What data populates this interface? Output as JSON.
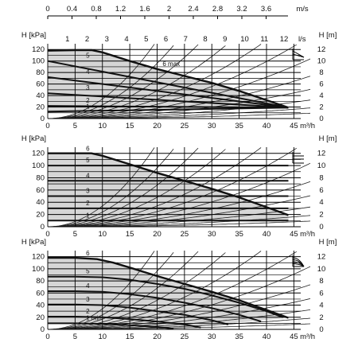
{
  "top_axis": {
    "unit": "m/s",
    "ticks": [
      "0",
      "0.4",
      "0.8",
      "1.2",
      "1.6",
      "2",
      "2.4",
      "2.8",
      "3.2",
      "3.6"
    ]
  },
  "secondary_axes": {
    "top_flow_unit": "l/s",
    "top_flow_ticks": [
      "1",
      "2",
      "3",
      "4",
      "5",
      "6",
      "7",
      "8",
      "9",
      "10",
      "11",
      "12"
    ],
    "right_unit": "H [m]",
    "right_ticks": [
      "0",
      "2",
      "4",
      "6",
      "8",
      "10",
      "12"
    ],
    "left_unit": "H [kPa]",
    "left_ticks": [
      "0",
      "20",
      "40",
      "60",
      "80",
      "100",
      "120"
    ],
    "bottom_unit": "m³/h",
    "bottom_ticks": [
      "0",
      "5",
      "10",
      "15",
      "20",
      "25",
      "30",
      "35",
      "40",
      "45"
    ]
  },
  "colors": {
    "shade": "#d6d6d6",
    "grid": "#000000",
    "curve": "#111111"
  },
  "chart_data": [
    {
      "type": "line",
      "mode_icon": "proportional-pressure-icon",
      "xlabel": "m³/h",
      "ylabel": "H [kPa]",
      "y2label": "H [m]",
      "xlim": [
        0,
        48
      ],
      "ylim": [
        0,
        130
      ],
      "series": [
        {
          "name": "1",
          "x": [
            0,
            44
          ],
          "y": [
            12,
            19
          ]
        },
        {
          "name": "2",
          "x": [
            0,
            44
          ],
          "y": [
            22,
            19
          ]
        },
        {
          "name": "3",
          "x": [
            0,
            44
          ],
          "y": [
            44,
            19
          ]
        },
        {
          "name": "4",
          "x": [
            0,
            44
          ],
          "y": [
            72,
            19
          ]
        },
        {
          "name": "5",
          "x": [
            0,
            44
          ],
          "y": [
            100,
            19
          ]
        },
        {
          "name": "6 max",
          "x": [
            0,
            5,
            8,
            10,
            15,
            20,
            25,
            30,
            35,
            40,
            44
          ],
          "y": [
            118,
            119,
            119,
            115,
            100,
            86,
            74,
            62,
            48,
            32,
            19
          ]
        }
      ]
    },
    {
      "type": "line",
      "mode_icon": "constant-pressure-icon",
      "xlabel": "m³/h",
      "ylabel": "H [kPa]",
      "y2label": "H [m]",
      "xlim": [
        0,
        48
      ],
      "ylim": [
        0,
        130
      ],
      "series": [
        {
          "name": "1",
          "x": [
            0,
            44
          ],
          "y": [
            10,
            10
          ]
        },
        {
          "name": "2",
          "x": [
            0,
            44
          ],
          "y": [
            30,
            30
          ]
        },
        {
          "name": "3",
          "x": [
            0,
            44
          ],
          "y": [
            50,
            50
          ]
        },
        {
          "name": "4",
          "x": [
            0,
            44
          ],
          "y": [
            75,
            75
          ]
        },
        {
          "name": "5",
          "x": [
            0,
            44
          ],
          "y": [
            100,
            100
          ]
        },
        {
          "name": "6",
          "x": [
            0,
            8,
            10,
            15,
            20,
            25,
            30,
            35,
            40,
            44
          ],
          "y": [
            120,
            120,
            116,
            102,
            88,
            75,
            62,
            48,
            32,
            19
          ]
        }
      ]
    },
    {
      "type": "line",
      "mode_icon": "constant-curve-icon",
      "xlabel": "m³/h",
      "ylabel": "H [kPa]",
      "y2label": "H [m]",
      "xlim": [
        0,
        48
      ],
      "ylim": [
        0,
        130
      ],
      "series": [
        {
          "name": "1 min",
          "x": [
            0,
            5,
            10,
            15,
            20,
            23
          ],
          "y": [
            10,
            10,
            9,
            7,
            4,
            1
          ]
        },
        {
          "name": "2",
          "x": [
            0,
            5,
            10,
            15,
            20,
            25,
            28
          ],
          "y": [
            21,
            21,
            20,
            17,
            13,
            8,
            3
          ]
        },
        {
          "name": "3",
          "x": [
            0,
            5,
            10,
            15,
            20,
            25,
            30,
            33
          ],
          "y": [
            41,
            41,
            40,
            36,
            30,
            24,
            15,
            8
          ]
        },
        {
          "name": "4",
          "x": [
            0,
            5,
            10,
            15,
            20,
            25,
            30,
            35,
            39
          ],
          "y": [
            63,
            63,
            62,
            58,
            52,
            44,
            35,
            24,
            13
          ]
        },
        {
          "name": "5",
          "x": [
            0,
            5,
            10,
            15,
            20,
            25,
            30,
            35,
            40,
            43
          ],
          "y": [
            87,
            87,
            86,
            82,
            75,
            67,
            56,
            44,
            30,
            20
          ]
        },
        {
          "name": "6",
          "x": [
            0,
            5,
            9,
            12,
            15,
            20,
            25,
            30,
            35,
            40,
            44
          ],
          "y": [
            118,
            118,
            116,
            110,
            102,
            88,
            75,
            62,
            48,
            32,
            19
          ]
        }
      ]
    }
  ]
}
